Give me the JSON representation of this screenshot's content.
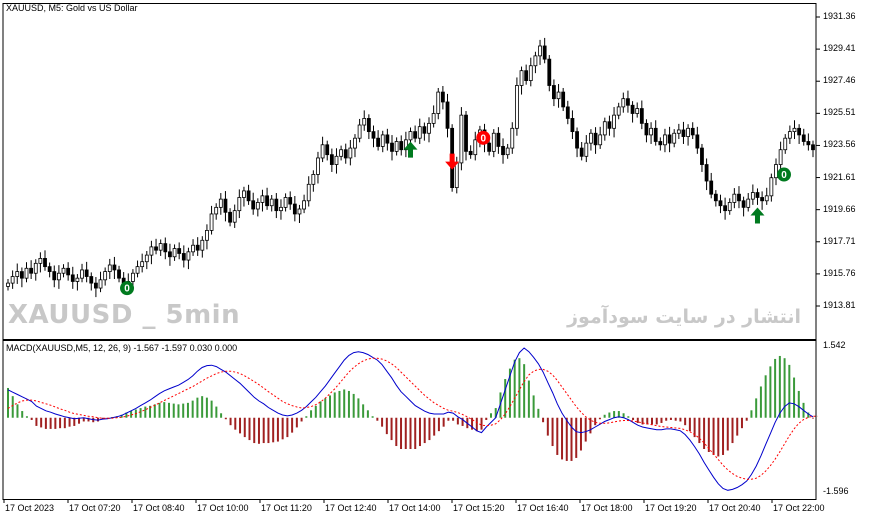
{
  "chart": {
    "title": "XAUUSD, M5:  Gold vs US Dollar",
    "watermark_en": "XAUUSD _ 5min",
    "watermark_fa": "انتشار در سایت سودآموز",
    "y_ticks": [
      "1931.36",
      "1929.41",
      "1927.46",
      "1925.51",
      "1923.56",
      "1921.61",
      "1919.66",
      "1917.71",
      "1915.76",
      "1913.81"
    ],
    "x_ticks": [
      "17 Oct 2023",
      "17 Oct 07:20",
      "17 Oct 08:40",
      "17 Oct 10:00",
      "17 Oct 11:20",
      "17 Oct 12:40",
      "17 Oct 14:00",
      "17 Oct 15:20",
      "17 Oct 16:40",
      "17 Oct 18:00",
      "17 Oct 19:20",
      "17 Oct 20:40",
      "17 Oct 22:00"
    ],
    "macd_title": "MACD(XAUUSD,M5, 12, 26, 9) -1.567 -1.597 0.030 0.000",
    "macd_ticks": [
      "1.542",
      "-1.596"
    ],
    "signal_label": "0",
    "colors": {
      "bull_arrow": "#007a1f",
      "bear_arrow": "#ff0000",
      "hist_up": "#3a9a3a",
      "hist_down": "#a02020",
      "macd_line": "#0000cc",
      "signal_line": "#ff0000"
    }
  },
  "chart_data": [
    {
      "type": "candlestick",
      "title": "XAUUSD, M5:  Gold vs US Dollar",
      "ylim": [
        1913.0,
        1932.0
      ],
      "close": [
        1915.2,
        1915.6,
        1915.9,
        1915.5,
        1916.1,
        1915.8,
        1916.4,
        1916.7,
        1916.2,
        1915.9,
        1915.4,
        1915.8,
        1916.1,
        1915.7,
        1915.3,
        1915.5,
        1916.0,
        1915.6,
        1915.2,
        1914.9,
        1915.4,
        1915.9,
        1916.3,
        1916.0,
        1915.5,
        1915.1,
        1915.3,
        1915.8,
        1916.2,
        1916.5,
        1916.9,
        1917.4,
        1917.2,
        1917.6,
        1917.1,
        1916.8,
        1917.3,
        1917.0,
        1916.6,
        1917.1,
        1917.5,
        1917.2,
        1917.8,
        1918.4,
        1919.4,
        1919.8,
        1920.3,
        1919.5,
        1918.9,
        1919.6,
        1920.4,
        1920.8,
        1920.2,
        1919.7,
        1920.1,
        1920.5,
        1919.9,
        1920.3,
        1919.6,
        1919.8,
        1920.4,
        1920.0,
        1919.4,
        1919.7,
        1920.2,
        1921.2,
        1921.8,
        1922.8,
        1923.6,
        1923.0,
        1922.4,
        1922.9,
        1923.3,
        1922.8,
        1923.4,
        1924.0,
        1924.8,
        1925.2,
        1924.4,
        1924.0,
        1923.5,
        1924.2,
        1923.7,
        1923.2,
        1923.8,
        1923.3,
        1923.9,
        1924.4,
        1924.0,
        1924.7,
        1924.3,
        1924.9,
        1925.5,
        1926.8,
        1926.2,
        1924.6,
        1921.0,
        1922.5,
        1925.4,
        1923.2,
        1923.0,
        1923.9,
        1924.5,
        1923.7,
        1923.2,
        1924.3,
        1923.5,
        1923.0,
        1923.4,
        1924.6,
        1927.2,
        1928.1,
        1927.5,
        1928.4,
        1929.0,
        1929.6,
        1928.8,
        1927.2,
        1926.4,
        1926.8,
        1925.9,
        1925.2,
        1924.4,
        1923.4,
        1922.9,
        1923.7,
        1924.3,
        1923.6,
        1924.2,
        1925.0,
        1924.6,
        1925.4,
        1925.9,
        1926.4,
        1926.0,
        1925.5,
        1925.8,
        1924.9,
        1924.2,
        1924.6,
        1923.8,
        1923.6,
        1924.2,
        1923.7,
        1924.3,
        1924.5,
        1924.1,
        1924.6,
        1924.2,
        1923.4,
        1922.4,
        1921.4,
        1920.6,
        1920.2,
        1919.9,
        1919.6,
        1920.1,
        1920.6,
        1920.2,
        1919.8,
        1920.3,
        1920.7,
        1920.4,
        1920.2,
        1920.5,
        1921.6,
        1922.4,
        1923.3,
        1924.0,
        1924.4,
        1924.6,
        1924.2,
        1923.8,
        1923.6,
        1923.3
      ],
      "marks": [
        {
          "type": "buy",
          "label": "0",
          "index": 24
        },
        {
          "type": "buy_arrow",
          "index": 87
        },
        {
          "type": "sell_arrow",
          "index": 96
        },
        {
          "type": "sell",
          "label": "0",
          "index": 101
        },
        {
          "type": "buy_arrow",
          "index": 162
        },
        {
          "type": "buy",
          "label": "0",
          "index": 166
        }
      ]
    },
    {
      "type": "macd",
      "title": "MACD(XAUUSD,M5, 12, 26, 9) -1.567 -1.597 0.030 0.000",
      "ylim": [
        -1.596,
        1.542
      ],
      "macd": [
        0.6,
        0.55,
        0.5,
        0.45,
        0.4,
        0.35,
        0.25,
        0.2,
        0.15,
        0.12,
        0.08,
        0.05,
        0.02,
        0.0,
        -0.02,
        -0.01,
        0.0,
        -0.02,
        -0.04,
        -0.05,
        -0.03,
        -0.02,
        0.0,
        0.02,
        0.05,
        0.1,
        0.15,
        0.2,
        0.26,
        0.32,
        0.38,
        0.45,
        0.52,
        0.58,
        0.62,
        0.66,
        0.7,
        0.76,
        0.82,
        0.9,
        1.0,
        1.08,
        1.12,
        1.13,
        1.1,
        1.04,
        0.98,
        0.9,
        0.82,
        0.74,
        0.64,
        0.54,
        0.44,
        0.36,
        0.3,
        0.22,
        0.16,
        0.1,
        0.06,
        0.04,
        0.06,
        0.1,
        0.16,
        0.24,
        0.34,
        0.44,
        0.56,
        0.68,
        0.82,
        0.96,
        1.1,
        1.24,
        1.34,
        1.4,
        1.42,
        1.4,
        1.36,
        1.3,
        1.24,
        1.14,
        1.0,
        0.86,
        0.7,
        0.56,
        0.46,
        0.36,
        0.26,
        0.2,
        0.14,
        0.1,
        0.08,
        0.08,
        0.08,
        0.12,
        0.1,
        0.02,
        -0.04,
        -0.12,
        -0.2,
        -0.28,
        -0.32,
        -0.2,
        -0.1,
        0.0,
        0.3,
        0.6,
        0.9,
        1.2,
        1.4,
        1.5,
        1.42,
        1.3,
        1.16,
        0.98,
        0.76,
        0.54,
        0.3,
        0.1,
        -0.06,
        -0.2,
        -0.3,
        -0.32,
        -0.3,
        -0.26,
        -0.2,
        -0.14,
        -0.08,
        -0.04,
        0.0,
        0.02,
        0.0,
        -0.04,
        -0.1,
        -0.16,
        -0.2,
        -0.22,
        -0.24,
        -0.26,
        -0.26,
        -0.24,
        -0.24,
        -0.26,
        -0.28,
        -0.36,
        -0.48,
        -0.62,
        -0.78,
        -0.96,
        -1.12,
        -1.28,
        -1.42,
        -1.52,
        -1.56,
        -1.54,
        -1.5,
        -1.44,
        -1.36,
        -1.22,
        -1.04,
        -0.82,
        -0.58,
        -0.34,
        -0.1,
        0.1,
        0.24,
        0.32,
        0.3,
        0.24,
        0.16,
        0.08,
        0.02
      ],
      "signal": [
        0.2,
        0.26,
        0.32,
        0.36,
        0.38,
        0.38,
        0.36,
        0.33,
        0.3,
        0.27,
        0.23,
        0.19,
        0.16,
        0.12,
        0.09,
        0.07,
        0.05,
        0.03,
        0.02,
        0.0,
        -0.01,
        -0.01,
        -0.01,
        0.0,
        0.01,
        0.03,
        0.06,
        0.09,
        0.13,
        0.17,
        0.22,
        0.27,
        0.32,
        0.37,
        0.42,
        0.47,
        0.52,
        0.57,
        0.62,
        0.67,
        0.73,
        0.79,
        0.85,
        0.9,
        0.95,
        0.98,
        1.0,
        1.0,
        0.98,
        0.95,
        0.9,
        0.84,
        0.78,
        0.71,
        0.64,
        0.56,
        0.49,
        0.42,
        0.35,
        0.3,
        0.26,
        0.23,
        0.21,
        0.22,
        0.24,
        0.28,
        0.34,
        0.42,
        0.52,
        0.62,
        0.74,
        0.86,
        0.98,
        1.08,
        1.16,
        1.22,
        1.26,
        1.28,
        1.28,
        1.26,
        1.22,
        1.16,
        1.08,
        0.98,
        0.88,
        0.78,
        0.68,
        0.58,
        0.48,
        0.4,
        0.32,
        0.26,
        0.2,
        0.16,
        0.14,
        0.11,
        0.07,
        0.02,
        -0.04,
        -0.1,
        -0.16,
        -0.17,
        -0.16,
        -0.13,
        -0.04,
        0.08,
        0.24,
        0.42,
        0.6,
        0.78,
        0.92,
        1.0,
        1.04,
        1.04,
        1.0,
        0.92,
        0.8,
        0.66,
        0.52,
        0.38,
        0.24,
        0.12,
        0.02,
        -0.05,
        -0.1,
        -0.12,
        -0.12,
        -0.11,
        -0.09,
        -0.07,
        -0.06,
        -0.06,
        -0.07,
        -0.09,
        -0.11,
        -0.13,
        -0.15,
        -0.17,
        -0.19,
        -0.2,
        -0.21,
        -0.22,
        -0.23,
        -0.26,
        -0.3,
        -0.36,
        -0.44,
        -0.54,
        -0.66,
        -0.78,
        -0.9,
        -1.02,
        -1.12,
        -1.2,
        -1.26,
        -1.3,
        -1.32,
        -1.32,
        -1.3,
        -1.24,
        -1.15,
        -1.03,
        -0.89,
        -0.73,
        -0.56,
        -0.39,
        -0.24,
        -0.12,
        -0.04,
        0.01,
        0.03,
        0.03
      ]
    }
  ]
}
